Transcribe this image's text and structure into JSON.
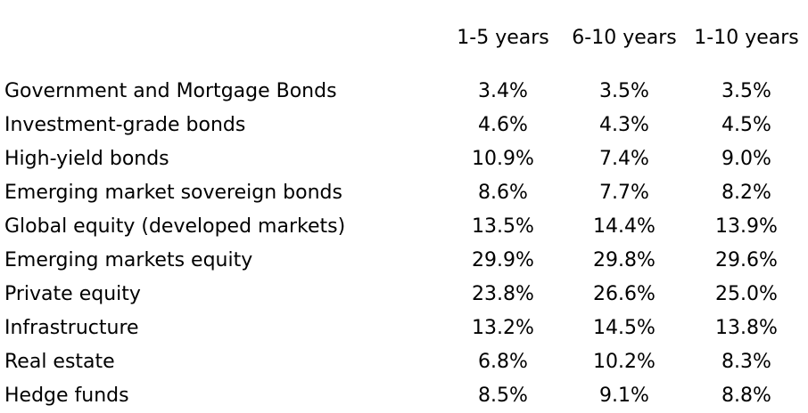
{
  "table": {
    "columns": [
      "",
      "1-5 years",
      "6-10 years",
      "1-10 years"
    ],
    "rows": [
      {
        "label": "Government and Mortgage Bonds",
        "values": [
          "3.4%",
          "3.5%",
          "3.5%"
        ]
      },
      {
        "label": "Investment-grade bonds",
        "values": [
          "4.6%",
          "4.3%",
          "4.5%"
        ]
      },
      {
        "label": "High-yield bonds",
        "values": [
          "10.9%",
          "7.4%",
          "9.0%"
        ]
      },
      {
        "label": "Emerging market sovereign bonds",
        "values": [
          "8.6%",
          "7.7%",
          "8.2%"
        ]
      },
      {
        "label": "Global equity (developed markets)",
        "values": [
          "13.5%",
          "14.4%",
          "13.9%"
        ]
      },
      {
        "label": "Emerging markets equity",
        "values": [
          "29.9%",
          "29.8%",
          "29.6%"
        ]
      },
      {
        "label": "Private equity",
        "values": [
          "23.8%",
          "26.6%",
          "25.0%"
        ]
      },
      {
        "label": "Infrastructure",
        "values": [
          "13.2%",
          "14.5%",
          "13.8%"
        ]
      },
      {
        "label": "Real estate",
        "values": [
          "6.8%",
          "10.2%",
          "8.3%"
        ]
      },
      {
        "label": "Hedge funds",
        "values": [
          "8.5%",
          "9.1%",
          "8.8%"
        ]
      }
    ]
  }
}
